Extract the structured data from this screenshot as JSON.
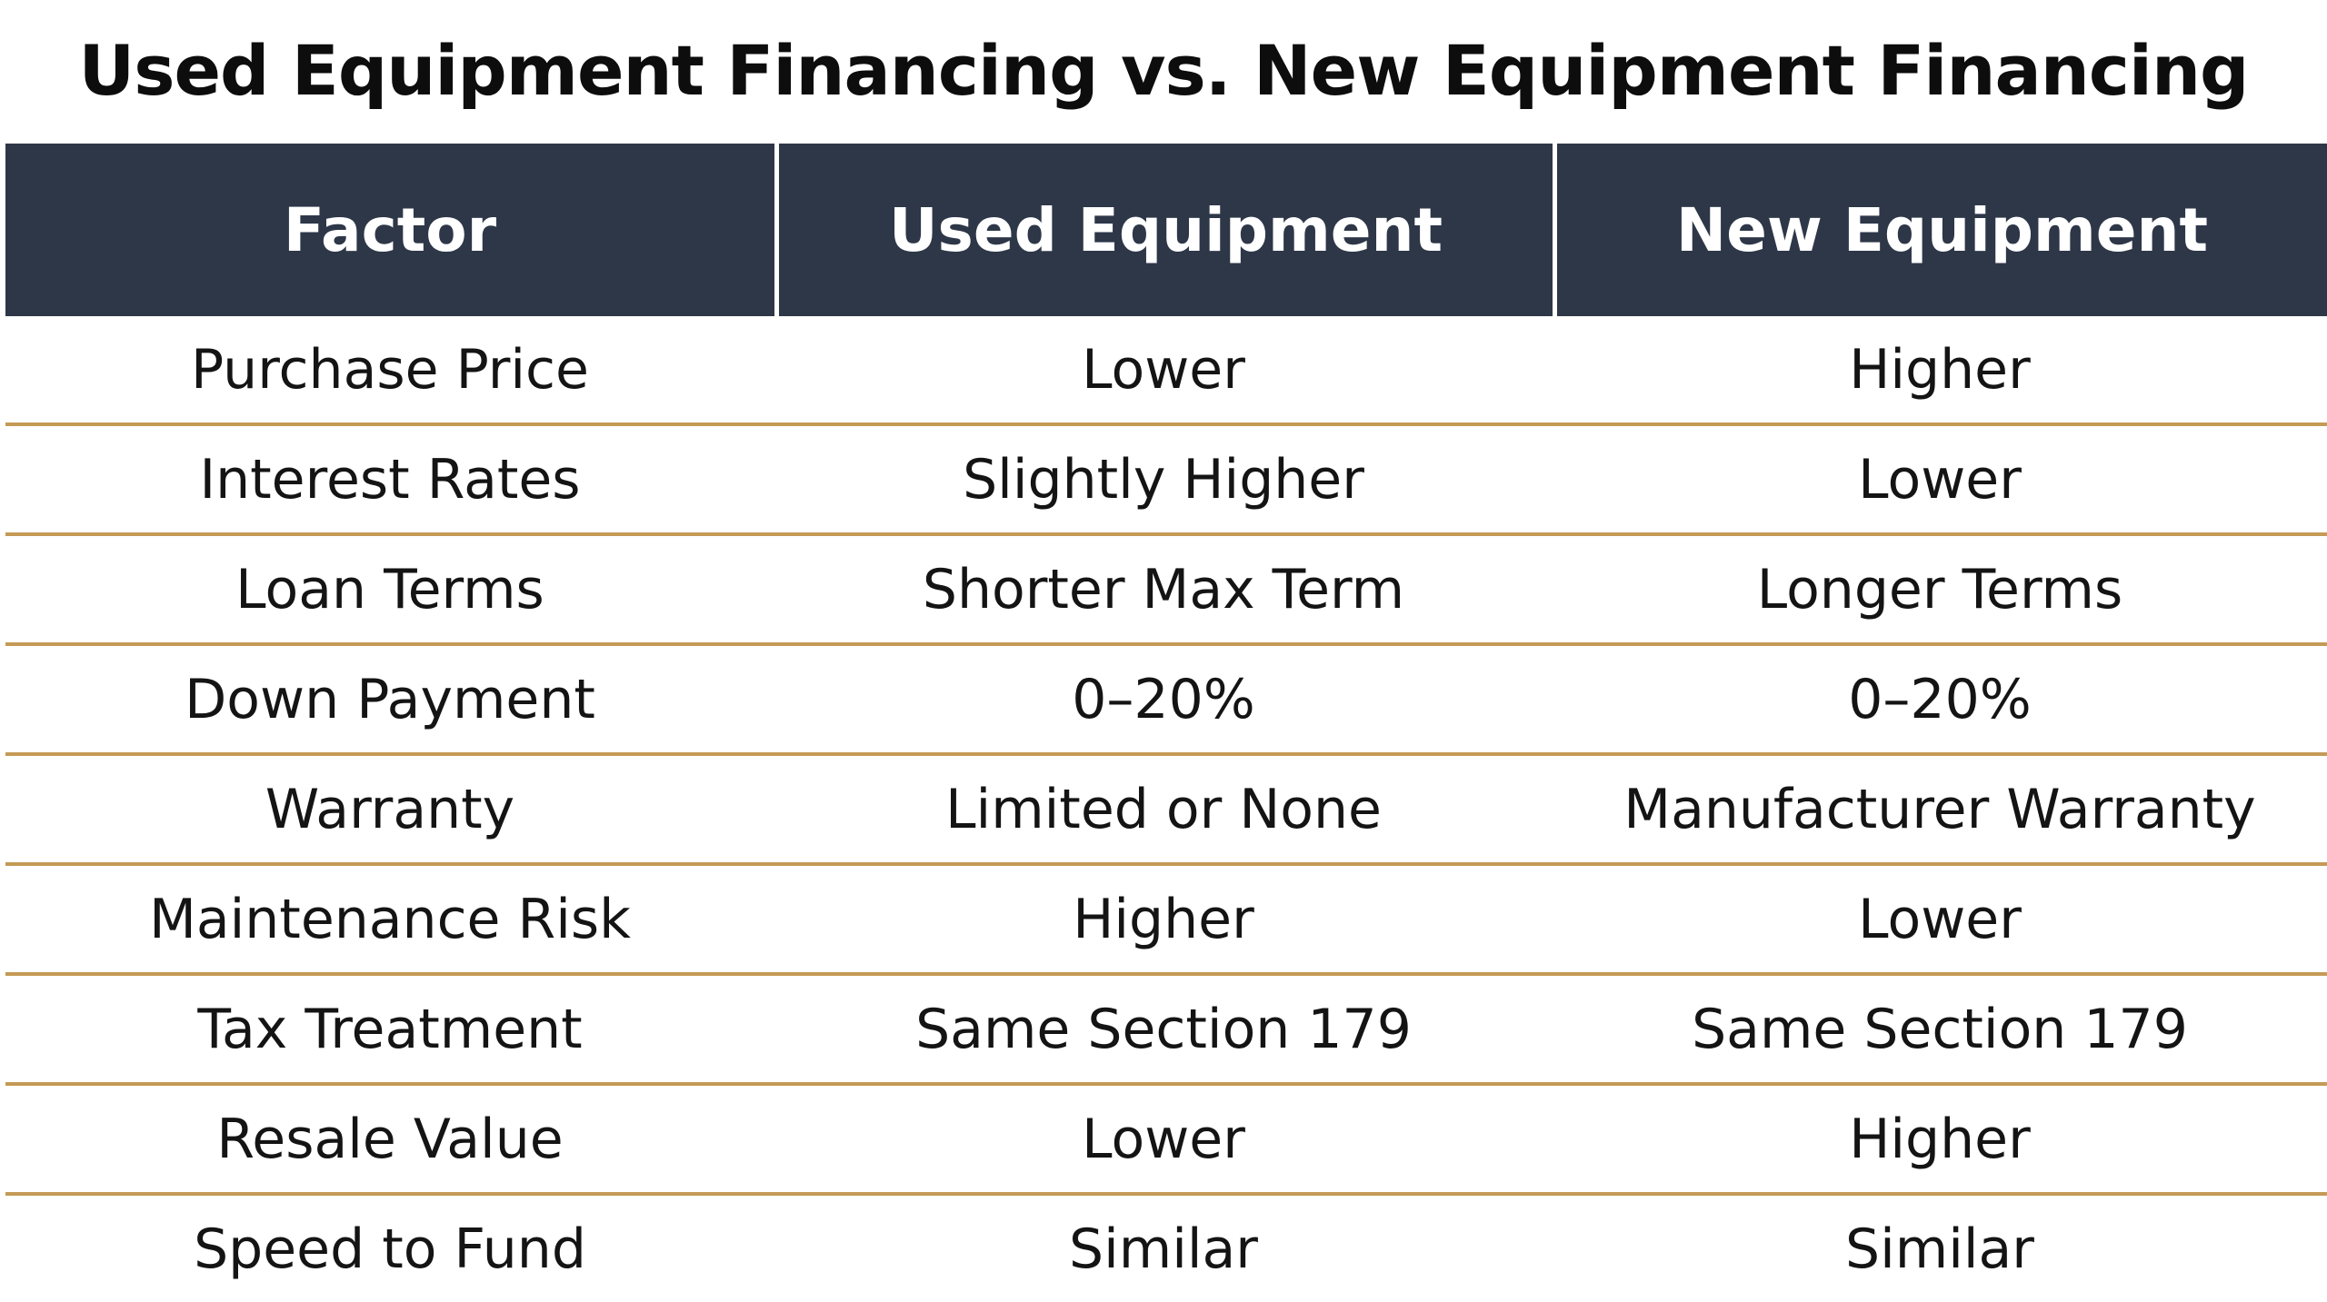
{
  "title": "Used Equipment Financing vs. New Equipment Financing",
  "colors": {
    "header_bg": "#2e3748",
    "header_text": "#ffffff",
    "row_divider": "#c49a55"
  },
  "chart_data": {
    "type": "table",
    "title": "Used Equipment Financing vs. New Equipment Financing",
    "columns": [
      "Factor",
      "Used Equipment",
      "New Equipment"
    ],
    "rows": [
      [
        "Purchase Price",
        "Lower",
        "Higher"
      ],
      [
        "Interest Rates",
        "Slightly Higher",
        "Lower"
      ],
      [
        "Loan Terms",
        "Shorter Max Term",
        "Longer Terms"
      ],
      [
        "Down Payment",
        "0–20%",
        "0–20%"
      ],
      [
        "Warranty",
        "Limited or None",
        "Manufacturer Warranty"
      ],
      [
        "Maintenance Risk",
        "Higher",
        "Lower"
      ],
      [
        "Tax Treatment",
        "Same Section 179",
        "Same Section 179"
      ],
      [
        "Resale Value",
        "Lower",
        "Higher"
      ],
      [
        "Speed to Fund",
        "Similar",
        "Similar"
      ]
    ]
  }
}
